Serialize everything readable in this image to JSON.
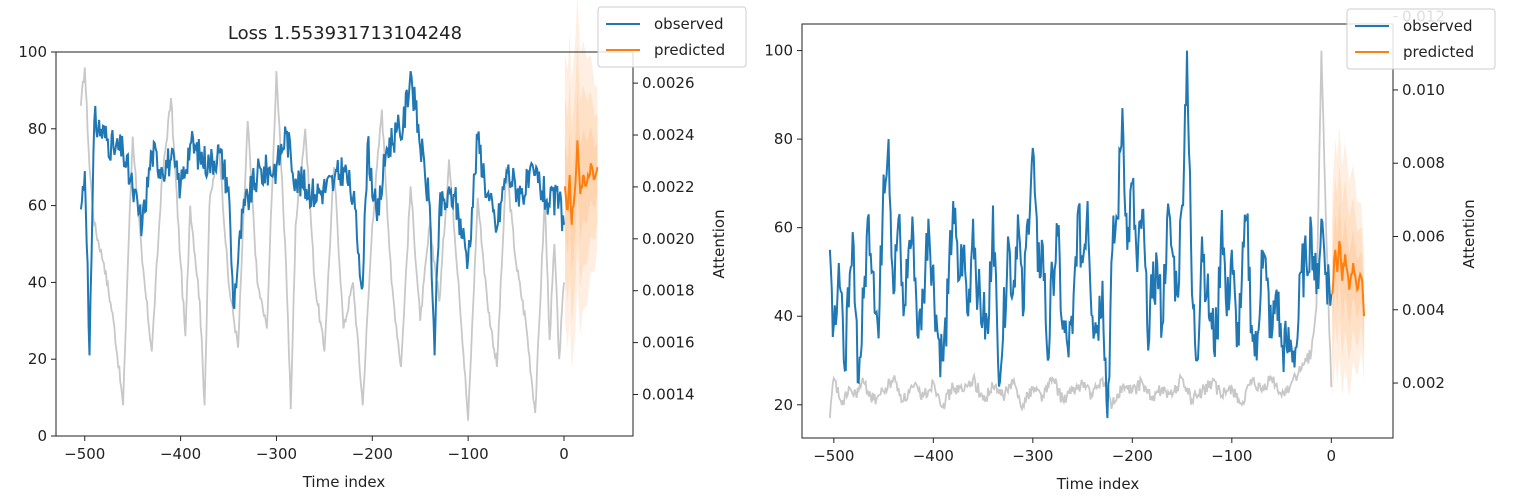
{
  "chart_data": [
    {
      "type": "line",
      "title": "Loss 1.553931713104248",
      "xlabel": "Time index",
      "ylabel": "",
      "y2label": "Attention",
      "xlim": [
        -530,
        72
      ],
      "ylim": [
        0,
        100
      ],
      "y2lim": [
        0.00124,
        0.00272
      ],
      "xticks": [
        -500,
        -400,
        -300,
        -200,
        -100,
        0
      ],
      "xtick_labels": [
        "−500",
        "−400",
        "−300",
        "−200",
        "−100",
        "0"
      ],
      "yticks": [
        0,
        20,
        40,
        60,
        80,
        100
      ],
      "ytick_labels": [
        "0",
        "20",
        "40",
        "60",
        "80",
        "100"
      ],
      "y2ticks": [
        0.0014,
        0.0016,
        0.0018,
        0.002,
        0.0022,
        0.0024,
        0.0026
      ],
      "y2tick_labels": [
        "0.0014",
        "0.0016",
        "0.0018",
        "0.0020",
        "0.0022",
        "0.0024",
        "0.0026"
      ],
      "legend": {
        "placement": "top-right",
        "entries": [
          "observed",
          "predicted"
        ]
      },
      "grid": false,
      "colors": {
        "observed": "#1f77b4",
        "predicted": "#ff7f0e",
        "attention": "#c8c8c8"
      },
      "observed_x": [
        -504,
        0
      ],
      "predicted_x": [
        1,
        35
      ],
      "observed_keypoints": [
        [
          -504,
          59
        ],
        [
          -500,
          69
        ],
        [
          -497,
          45
        ],
        [
          -495,
          21
        ],
        [
          -493,
          46
        ],
        [
          -490,
          82
        ],
        [
          -470,
          75
        ],
        [
          -460,
          74
        ],
        [
          -450,
          64
        ],
        [
          -440,
          55
        ],
        [
          -430,
          74
        ],
        [
          -420,
          70
        ],
        [
          -410,
          72
        ],
        [
          -400,
          65
        ],
        [
          -390,
          76
        ],
        [
          -380,
          73
        ],
        [
          -370,
          71
        ],
        [
          -360,
          74
        ],
        [
          -350,
          65
        ],
        [
          -345,
          34
        ],
        [
          -335,
          58
        ],
        [
          -320,
          68
        ],
        [
          -300,
          70
        ],
        [
          -290,
          79
        ],
        [
          -280,
          67
        ],
        [
          -260,
          63
        ],
        [
          -240,
          66
        ],
        [
          -230,
          70
        ],
        [
          -220,
          62
        ],
        [
          -210,
          39
        ],
        [
          -205,
          76
        ],
        [
          -195,
          56
        ],
        [
          -185,
          75
        ],
        [
          -175,
          79
        ],
        [
          -168,
          80
        ],
        [
          -160,
          95
        ],
        [
          -155,
          85
        ],
        [
          -145,
          68
        ],
        [
          -140,
          60
        ],
        [
          -135,
          21
        ],
        [
          -130,
          59
        ],
        [
          -115,
          63
        ],
        [
          -100,
          46
        ],
        [
          -90,
          78
        ],
        [
          -80,
          63
        ],
        [
          -70,
          54
        ],
        [
          -60,
          69
        ],
        [
          -45,
          63
        ],
        [
          -30,
          68
        ],
        [
          -15,
          60
        ],
        [
          -5,
          62
        ],
        [
          0,
          55
        ]
      ],
      "predicted_keypoints": [
        [
          1,
          65
        ],
        [
          4,
          59
        ],
        [
          6,
          68
        ],
        [
          8,
          55
        ],
        [
          10,
          60
        ],
        [
          12,
          66
        ],
        [
          14,
          77
        ],
        [
          17,
          63
        ],
        [
          20,
          68
        ],
        [
          24,
          66
        ],
        [
          28,
          71
        ],
        [
          32,
          67
        ],
        [
          35,
          70
        ]
      ],
      "attention_keypoints": [
        [
          -504,
          86
        ],
        [
          -500,
          96
        ],
        [
          -495,
          70
        ],
        [
          -490,
          55
        ],
        [
          -480,
          45
        ],
        [
          -470,
          30
        ],
        [
          -460,
          8
        ],
        [
          -455,
          45
        ],
        [
          -450,
          78
        ],
        [
          -440,
          45
        ],
        [
          -430,
          22
        ],
        [
          -420,
          65
        ],
        [
          -410,
          88
        ],
        [
          -400,
          45
        ],
        [
          -395,
          26
        ],
        [
          -390,
          60
        ],
        [
          -380,
          35
        ],
        [
          -375,
          8
        ],
        [
          -370,
          60
        ],
        [
          -360,
          76
        ],
        [
          -350,
          40
        ],
        [
          -340,
          23
        ],
        [
          -330,
          82
        ],
        [
          -320,
          40
        ],
        [
          -310,
          28
        ],
        [
          -300,
          95
        ],
        [
          -290,
          45
        ],
        [
          -285,
          7
        ],
        [
          -280,
          55
        ],
        [
          -270,
          80
        ],
        [
          -260,
          40
        ],
        [
          -250,
          22
        ],
        [
          -240,
          70
        ],
        [
          -230,
          28
        ],
        [
          -220,
          40
        ],
        [
          -210,
          8
        ],
        [
          -200,
          55
        ],
        [
          -190,
          85
        ],
        [
          -180,
          40
        ],
        [
          -170,
          18
        ],
        [
          -160,
          65
        ],
        [
          -150,
          30
        ],
        [
          -140,
          55
        ],
        [
          -130,
          35
        ],
        [
          -120,
          72
        ],
        [
          -110,
          40
        ],
        [
          -100,
          4
        ],
        [
          -90,
          62
        ],
        [
          -80,
          35
        ],
        [
          -70,
          18
        ],
        [
          -60,
          70
        ],
        [
          -50,
          45
        ],
        [
          -40,
          30
        ],
        [
          -30,
          6
        ],
        [
          -20,
          62
        ],
        [
          -15,
          25
        ],
        [
          -10,
          50
        ],
        [
          -5,
          20
        ],
        [
          0,
          40
        ]
      ],
      "predicted_band": {
        "center_offset": 0,
        "halfwidth_max": 38
      }
    },
    {
      "type": "line",
      "title": "",
      "xlabel": "Time index",
      "ylabel": "",
      "y2label": "Attention",
      "xlim": [
        -532,
        62
      ],
      "ylim": [
        12.5,
        106
      ],
      "y2lim": [
        0.0005,
        0.0118
      ],
      "xticks": [
        -500,
        -400,
        -300,
        -200,
        -100,
        0
      ],
      "xtick_labels": [
        "−500",
        "−400",
        "−300",
        "−200",
        "−100",
        "0"
      ],
      "yticks": [
        20,
        40,
        60,
        80,
        100
      ],
      "ytick_labels": [
        "20",
        "40",
        "60",
        "80",
        "100"
      ],
      "y2ticks": [
        0.002,
        0.004,
        0.006,
        0.008,
        0.01,
        0.012
      ],
      "y2tick_labels": [
        "0.002",
        "0.004",
        "0.006",
        "0.008",
        "0.010",
        "0.012"
      ],
      "legend": {
        "placement": "top-right",
        "entries": [
          "observed",
          "predicted"
        ]
      },
      "grid": false,
      "colors": {
        "observed": "#1f77b4",
        "predicted": "#ff7f0e",
        "attention": "#c8c8c8"
      },
      "observed_x": [
        -504,
        0
      ],
      "predicted_x": [
        1,
        33
      ],
      "observed_keypoints": [
        [
          -504,
          55
        ],
        [
          -500,
          38
        ],
        [
          -495,
          52
        ],
        [
          -490,
          30
        ],
        [
          -485,
          42
        ],
        [
          -480,
          56
        ],
        [
          -475,
          25
        ],
        [
          -470,
          44
        ],
        [
          -465,
          63
        ],
        [
          -460,
          50
        ],
        [
          -455,
          35
        ],
        [
          -450,
          72
        ],
        [
          -445,
          80
        ],
        [
          -440,
          45
        ],
        [
          -435,
          62
        ],
        [
          -430,
          40
        ],
        [
          -425,
          55
        ],
        [
          -420,
          58
        ],
        [
          -415,
          35
        ],
        [
          -410,
          45
        ],
        [
          -405,
          62
        ],
        [
          -395,
          35
        ],
        [
          -390,
          30
        ],
        [
          -385,
          45
        ],
        [
          -380,
          66
        ],
        [
          -375,
          48
        ],
        [
          -370,
          55
        ],
        [
          -365,
          40
        ],
        [
          -360,
          62
        ],
        [
          -355,
          45
        ],
        [
          -350,
          40
        ],
        [
          -345,
          36
        ],
        [
          -340,
          65
        ],
        [
          -335,
          30
        ],
        [
          -330,
          35
        ],
        [
          -325,
          58
        ],
        [
          -320,
          45
        ],
        [
          -315,
          63
        ],
        [
          -310,
          40
        ],
        [
          -305,
          62
        ],
        [
          -300,
          78
        ],
        [
          -295,
          50
        ],
        [
          -290,
          56
        ],
        [
          -285,
          30
        ],
        [
          -280,
          50
        ],
        [
          -275,
          58
        ],
        [
          -270,
          37
        ],
        [
          -265,
          33
        ],
        [
          -260,
          36
        ],
        [
          -255,
          63
        ],
        [
          -250,
          52
        ],
        [
          -245,
          66
        ],
        [
          -240,
          40
        ],
        [
          -235,
          38
        ],
        [
          -230,
          48
        ],
        [
          -225,
          17
        ],
        [
          -220,
          55
        ],
        [
          -215,
          62
        ],
        [
          -210,
          87
        ],
        [
          -205,
          55
        ],
        [
          -200,
          70
        ],
        [
          -195,
          50
        ],
        [
          -190,
          64
        ],
        [
          -185,
          38
        ],
        [
          -180,
          44
        ],
        [
          -175,
          52
        ],
        [
          -170,
          38
        ],
        [
          -165,
          62
        ],
        [
          -160,
          55
        ],
        [
          -155,
          45
        ],
        [
          -150,
          65
        ],
        [
          -145,
          100
        ],
        [
          -140,
          45
        ],
        [
          -135,
          30
        ],
        [
          -130,
          58
        ],
        [
          -125,
          45
        ],
        [
          -120,
          37
        ],
        [
          -115,
          35
        ],
        [
          -110,
          64
        ],
        [
          -105,
          40
        ],
        [
          -100,
          55
        ],
        [
          -95,
          33
        ],
        [
          -90,
          48
        ],
        [
          -85,
          62
        ],
        [
          -80,
          38
        ],
        [
          -75,
          30
        ],
        [
          -70,
          55
        ],
        [
          -65,
          48
        ],
        [
          -60,
          35
        ],
        [
          -55,
          46
        ],
        [
          -50,
          33
        ],
        [
          -45,
          33
        ],
        [
          -40,
          33
        ],
        [
          -35,
          33
        ],
        [
          -30,
          50
        ],
        [
          -25,
          52
        ],
        [
          -20,
          60
        ],
        [
          -15,
          45
        ],
        [
          -10,
          62
        ],
        [
          -5,
          50
        ],
        [
          0,
          45
        ]
      ],
      "predicted_keypoints": [
        [
          1,
          45
        ],
        [
          4,
          55
        ],
        [
          6,
          50
        ],
        [
          8,
          57
        ],
        [
          11,
          48
        ],
        [
          14,
          54
        ],
        [
          18,
          46
        ],
        [
          22,
          52
        ],
        [
          26,
          46
        ],
        [
          30,
          49
        ],
        [
          33,
          40
        ]
      ],
      "attention_keypoints": [
        [
          -504,
          17
        ],
        [
          -500,
          26
        ],
        [
          -495,
          22
        ],
        [
          -490,
          20
        ],
        [
          -485,
          24
        ],
        [
          -480,
          22
        ],
        [
          -470,
          25
        ],
        [
          -460,
          21
        ],
        [
          -450,
          23
        ],
        [
          -440,
          26
        ],
        [
          -430,
          21
        ],
        [
          -420,
          24
        ],
        [
          -410,
          22
        ],
        [
          -400,
          25
        ],
        [
          -390,
          20
        ],
        [
          -380,
          24
        ],
        [
          -370,
          23
        ],
        [
          -360,
          26
        ],
        [
          -350,
          21
        ],
        [
          -340,
          24
        ],
        [
          -330,
          22
        ],
        [
          -320,
          25
        ],
        [
          -310,
          20
        ],
        [
          -300,
          24
        ],
        [
          -290,
          22
        ],
        [
          -280,
          26
        ],
        [
          -270,
          21
        ],
        [
          -260,
          23
        ],
        [
          -250,
          25
        ],
        [
          -240,
          22
        ],
        [
          -230,
          26
        ],
        [
          -220,
          20
        ],
        [
          -210,
          24
        ],
        [
          -200,
          23
        ],
        [
          -190,
          25
        ],
        [
          -180,
          21
        ],
        [
          -170,
          24
        ],
        [
          -160,
          22
        ],
        [
          -150,
          26
        ],
        [
          -140,
          21
        ],
        [
          -130,
          23
        ],
        [
          -120,
          25
        ],
        [
          -110,
          22
        ],
        [
          -100,
          24
        ],
        [
          -90,
          20
        ],
        [
          -80,
          25
        ],
        [
          -70,
          23
        ],
        [
          -60,
          26
        ],
        [
          -50,
          22
        ],
        [
          -40,
          25
        ],
        [
          -30,
          28
        ],
        [
          -20,
          32
        ],
        [
          -15,
          42
        ],
        [
          -10,
          100
        ],
        [
          -5,
          58
        ],
        [
          0,
          24
        ]
      ],
      "predicted_band": {
        "center_offset": 0,
        "halfwidth_max": 26
      }
    }
  ]
}
